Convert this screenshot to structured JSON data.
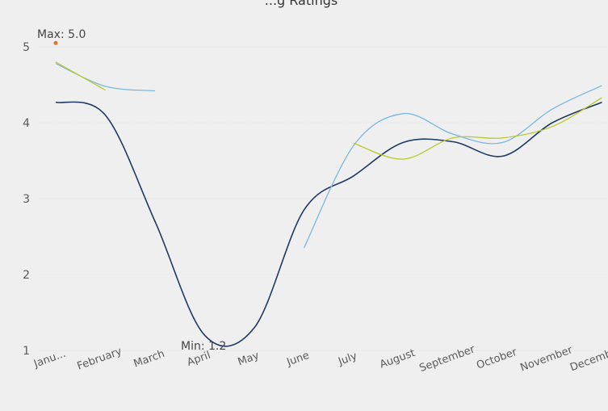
{
  "chart_data": {
    "type": "line",
    "title": "...g Ratings",
    "categories": [
      "Janu...",
      "February",
      "March",
      "April",
      "May",
      "June",
      "July",
      "August",
      "September",
      "October",
      "November",
      "December"
    ],
    "ylim": [
      1,
      5
    ],
    "yticks": [
      1,
      2,
      3,
      4,
      5
    ],
    "grid": true,
    "series": [
      {
        "color": "#1f3864",
        "values": [
          4.27,
          4.1,
          2.7,
          1.2,
          1.3,
          2.85,
          3.3,
          3.74,
          3.75,
          3.56,
          4.0,
          4.27
        ]
      },
      {
        "color": "#79b8e2",
        "values": [
          4.78,
          4.48,
          4.42,
          null,
          null,
          2.35,
          3.7,
          4.12,
          3.85,
          3.74,
          4.18,
          4.49
        ]
      },
      {
        "color": "#b9c92c",
        "values": [
          4.8,
          4.43,
          null,
          null,
          null,
          null,
          3.73,
          3.52,
          3.8,
          3.8,
          3.95,
          4.33
        ]
      }
    ],
    "annotations": {
      "max_label": "Max: 5.0",
      "max_value": 5.05,
      "max_category_index": 0,
      "max_color": "#e8722a",
      "min_label": "Min: 1.2"
    }
  }
}
